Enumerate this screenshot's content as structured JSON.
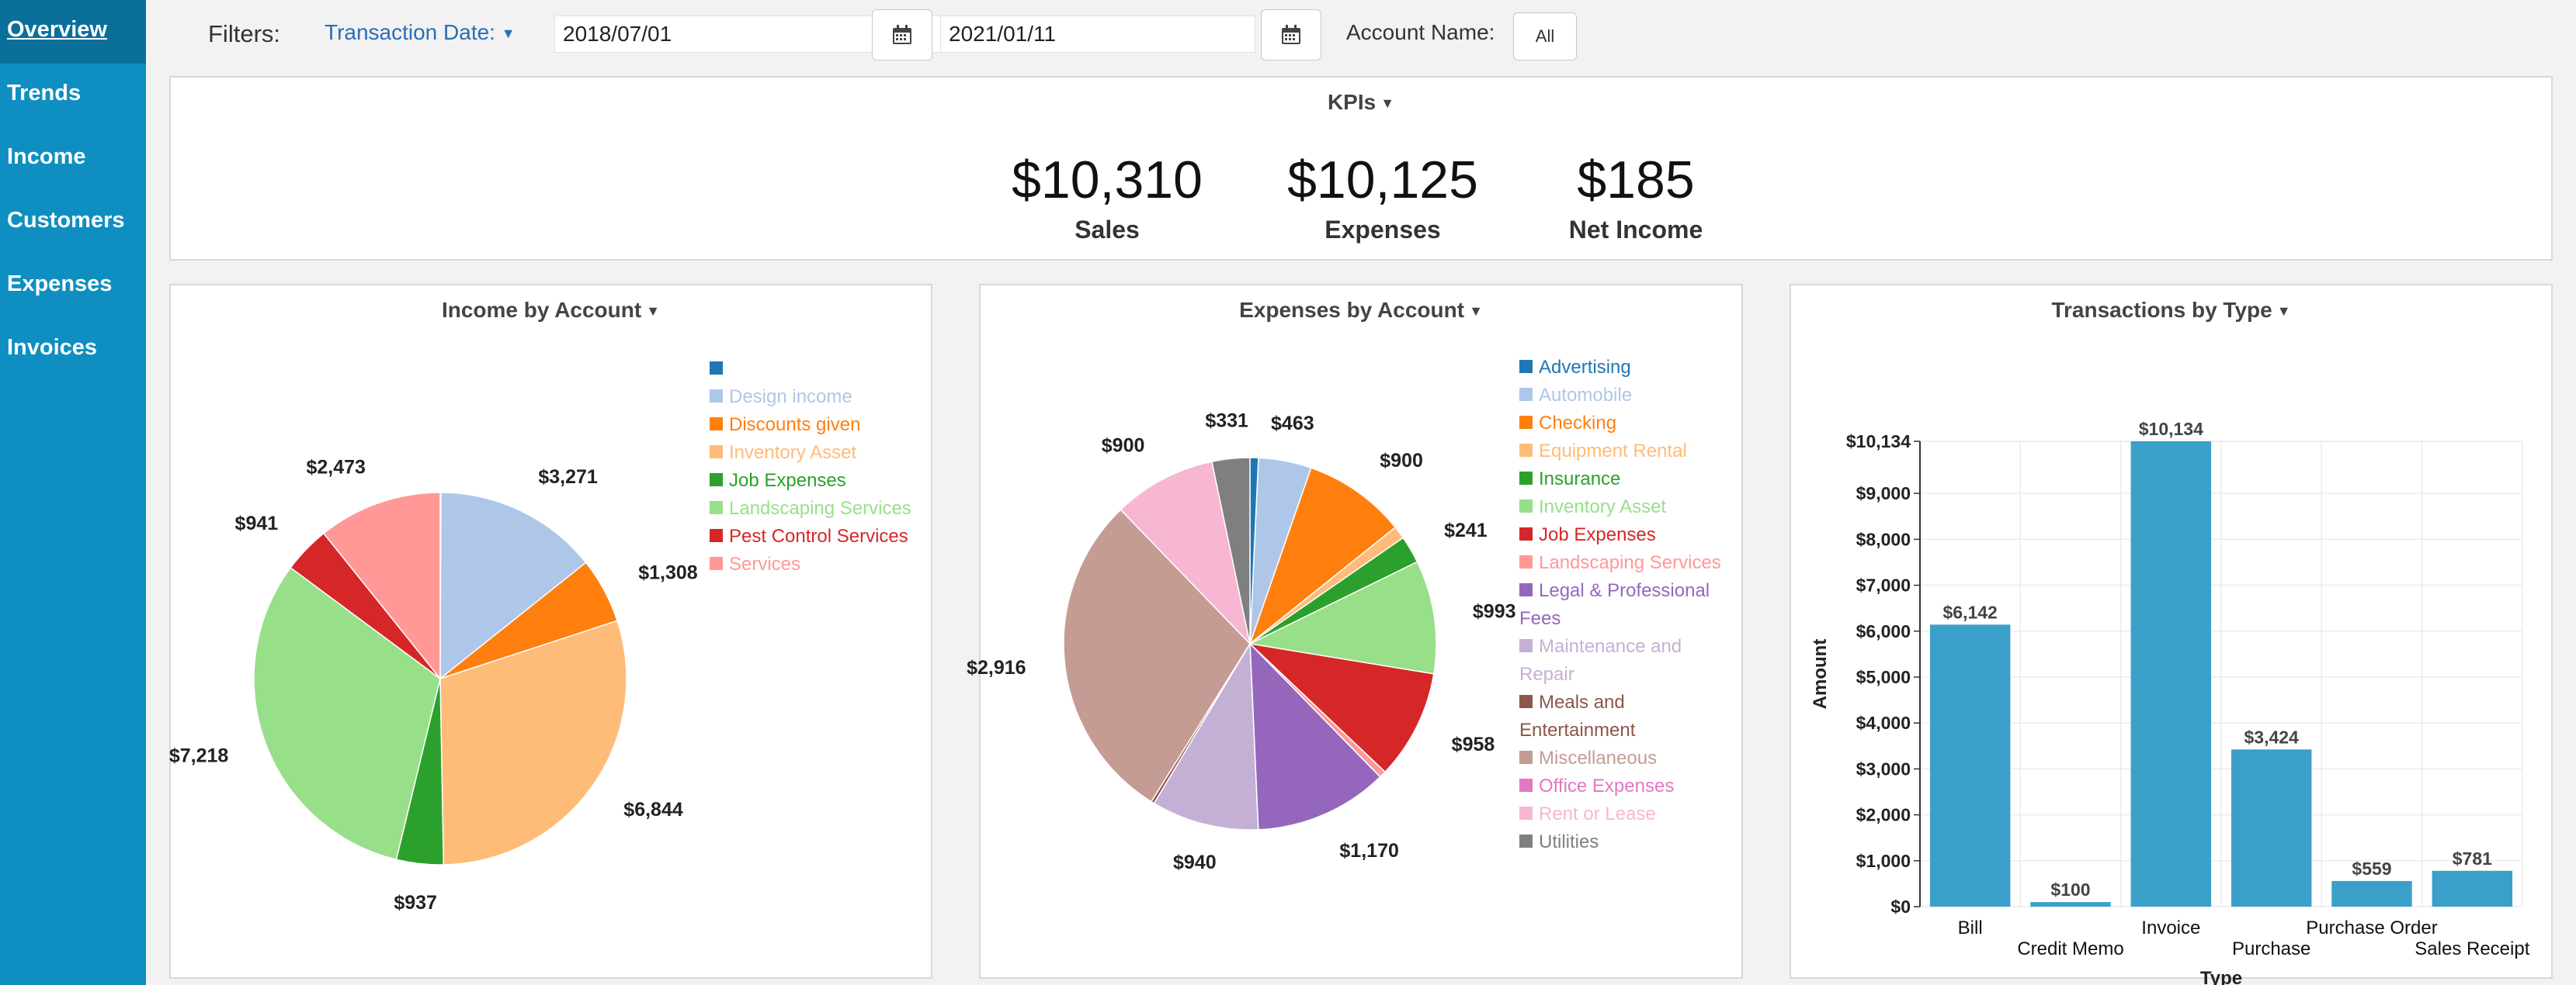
{
  "nav": {
    "items": [
      {
        "label": "Overview",
        "active": true
      },
      {
        "label": "Trends",
        "active": false
      },
      {
        "label": "Income",
        "active": false
      },
      {
        "label": "Customers",
        "active": false
      },
      {
        "label": "Expenses",
        "active": false
      },
      {
        "label": "Invoices",
        "active": false
      }
    ]
  },
  "filters": {
    "label": "Filters:",
    "date_filter_label": "Transaction Date:",
    "start_date": "2018/07/01",
    "end_date": "2021/01/11",
    "account_label": "Account Name:",
    "account_value": "All"
  },
  "kpis": {
    "title": "KPIs",
    "items": [
      {
        "value": "$10,310",
        "label": "Sales"
      },
      {
        "value": "$10,125",
        "label": "Expenses"
      },
      {
        "value": "$185",
        "label": "Net Income"
      }
    ]
  },
  "panels": {
    "income_title": "Income by Account",
    "expenses_title": "Expenses by Account",
    "transactions_title": "Transactions by Type"
  },
  "chart_data": [
    {
      "type": "pie",
      "title": "Income by Account",
      "legend_placement": "right",
      "slices": [
        {
          "name": "",
          "value": 15,
          "display": "",
          "color": "#1f77b4"
        },
        {
          "name": "Design income",
          "value": 3271,
          "display": "$3,271",
          "color": "#aec7e8"
        },
        {
          "name": "Discounts given",
          "value": 1308,
          "display": "$1,308",
          "color": "#ff7f0e"
        },
        {
          "name": "Inventory Asset",
          "value": 6844,
          "display": "$6,844",
          "color": "#ffbb78"
        },
        {
          "name": "Job Expenses",
          "value": 937,
          "display": "$937",
          "color": "#2ca02c"
        },
        {
          "name": "Landscaping Services",
          "value": 7218,
          "display": "$7,218",
          "color": "#98df8a"
        },
        {
          "name": "Pest Control Services",
          "value": 941,
          "display": "$941",
          "color": "#d62728"
        },
        {
          "name": "Services",
          "value": 2473,
          "display": "$2,473",
          "color": "#ff9896"
        }
      ]
    },
    {
      "type": "pie",
      "title": "Expenses by Account",
      "legend_placement": "right",
      "slices": [
        {
          "name": "Advertising",
          "value": 74,
          "display": "",
          "color": "#1f77b4"
        },
        {
          "name": "Automobile",
          "value": 463,
          "display": "$463",
          "color": "#aec7e8"
        },
        {
          "name": "Checking",
          "value": 900,
          "display": "$900",
          "color": "#ff7f0e"
        },
        {
          "name": "Equipment Rental",
          "value": 112,
          "display": "",
          "color": "#ffbb78"
        },
        {
          "name": "Insurance",
          "value": 241,
          "display": "$241",
          "color": "#2ca02c"
        },
        {
          "name": "Inventory Asset",
          "value": 993,
          "display": "$993",
          "color": "#98df8a"
        },
        {
          "name": "Job Expenses",
          "value": 958,
          "display": "$958",
          "color": "#d62728"
        },
        {
          "name": "Landscaping Services",
          "value": 60,
          "display": "",
          "color": "#ff9896"
        },
        {
          "name": "Legal & Professional Fees",
          "value": 1170,
          "display": "$1,170",
          "color": "#9467bd"
        },
        {
          "name": "Maintenance and Repair",
          "value": 940,
          "display": "$940",
          "color": "#c5b0d5"
        },
        {
          "name": "Meals and Entertainment",
          "value": 28,
          "display": "",
          "color": "#8c564b"
        },
        {
          "name": "Miscellaneous",
          "value": 2916,
          "display": "$2,916",
          "color": "#c49c94"
        },
        {
          "name": "Office Expenses",
          "value": 0,
          "display": "",
          "color": "#e377c2"
        },
        {
          "name": "Rent or Lease",
          "value": 900,
          "display": "$900",
          "color": "#f7b6d2"
        },
        {
          "name": "Utilities",
          "value": 331,
          "display": "$331",
          "color": "#7f7f7f"
        }
      ]
    },
    {
      "type": "bar",
      "title": "Transactions by Type",
      "categories": [
        "Bill",
        "Credit Memo",
        "Invoice",
        "Purchase",
        "Purchase Order",
        "Sales Receipt"
      ],
      "values": [
        6142,
        100,
        10134,
        3424,
        559,
        781
      ],
      "value_labels": [
        "$6,142",
        "$100",
        "$10,134",
        "$3,424",
        "$559",
        "$781"
      ],
      "xlabel": "Type",
      "ylabel": "Amount",
      "ylim": [
        0,
        10134
      ],
      "yticks": [
        0,
        1000,
        2000,
        3000,
        4000,
        5000,
        6000,
        7000,
        8000,
        9000,
        10134
      ],
      "ytick_labels": [
        "$0",
        "$1,000",
        "$2,000",
        "$3,000",
        "$4,000",
        "$5,000",
        "$6,000",
        "$7,000",
        "$8,000",
        "$9,000",
        "$10,134"
      ],
      "color": "#3aa0c9",
      "grid": true
    }
  ]
}
